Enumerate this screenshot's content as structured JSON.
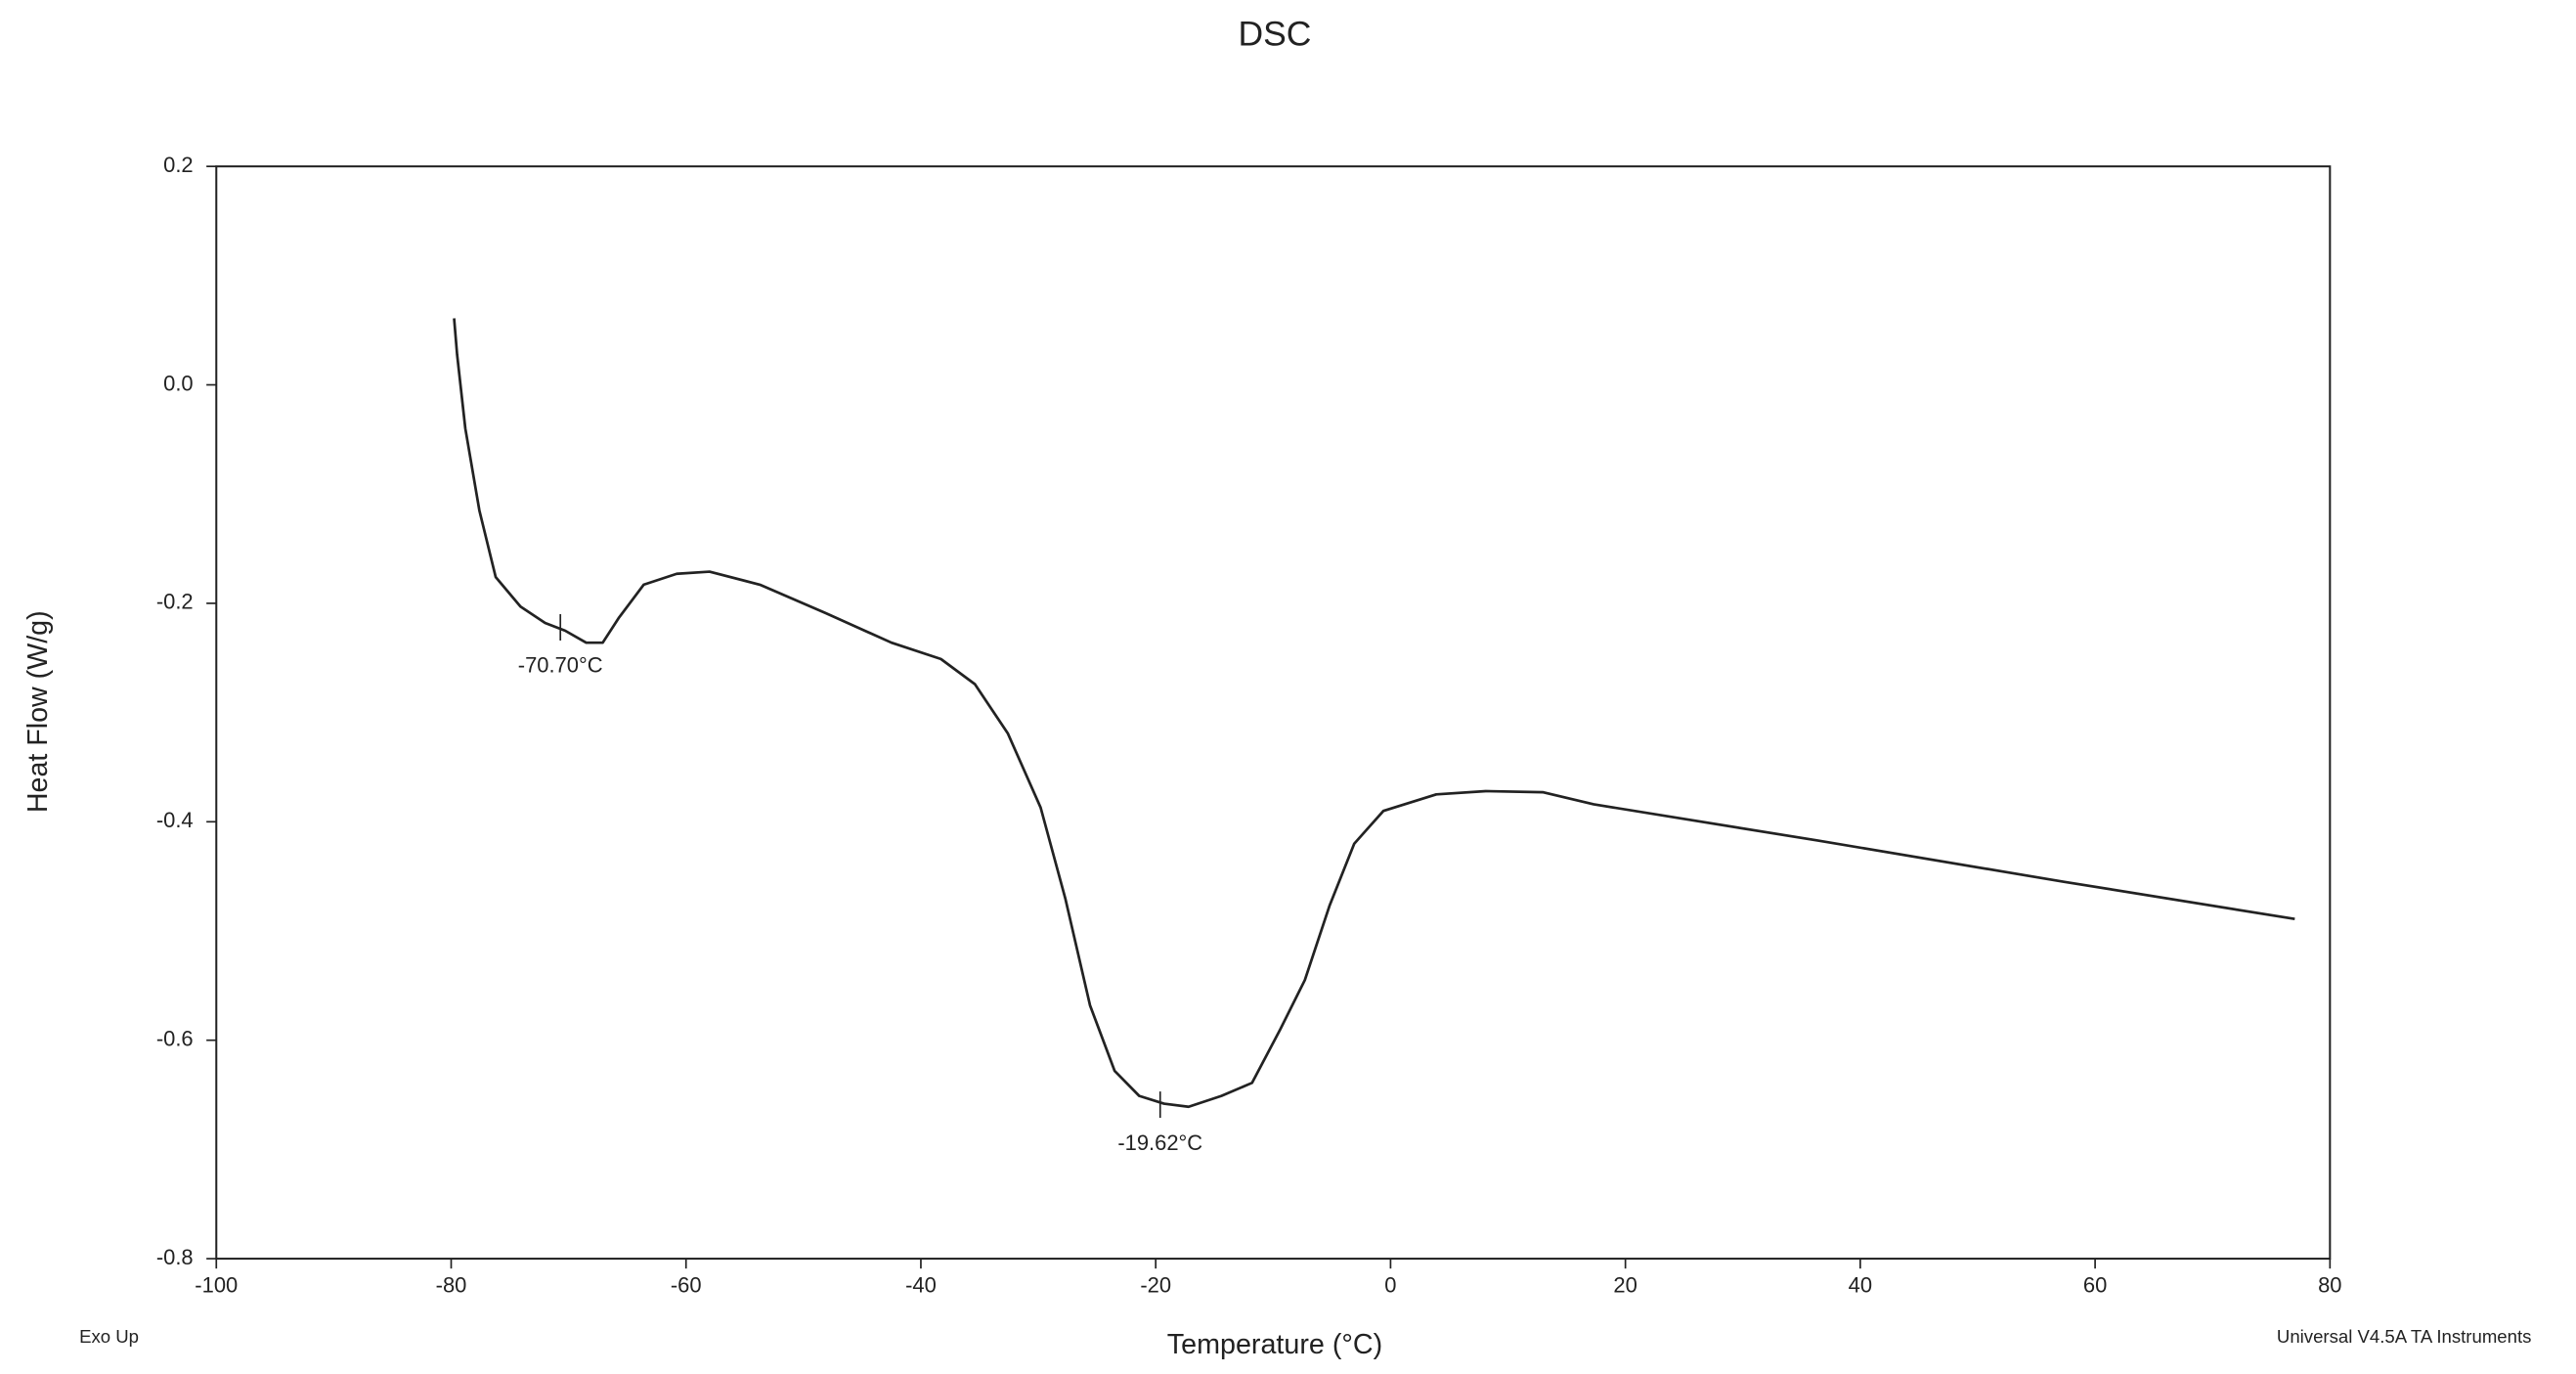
{
  "chart_data": {
    "type": "line",
    "title": "DSC",
    "x_label": "Temperature (°C)",
    "y_label": "Heat Flow (W/g)",
    "footer_left": "Exo Up",
    "footer_right": "Universal V4.5A TA Instruments",
    "xlim": [
      -100,
      80
    ],
    "xticks": [
      -100,
      -80,
      -60,
      -40,
      -20,
      0,
      20,
      40,
      60,
      80
    ],
    "ylim": [
      -0.8,
      0.2
    ],
    "yticks": [
      0.2,
      {
        "value": 0,
        "label": "0.0"
      },
      -0.2,
      -0.4,
      -0.6,
      -0.8
    ],
    "series": [
      {
        "color": "#222222",
        "x": [
          -79.75,
          -79.5,
          -78.8,
          -77.6,
          -76.2,
          -74.1,
          -72,
          -70.3,
          -68.5,
          -67.1,
          -65.7,
          -63.6,
          -60.8,
          -58,
          -53.7,
          -48.1,
          -42.5,
          -38.3,
          -35.4,
          -32.6,
          -29.8,
          -27.7,
          -25.6,
          -23.5,
          -21.4,
          -19.3,
          -17.2,
          -14.4,
          -11.8,
          -9.4,
          -7.3,
          -5.2,
          -3.1,
          -0.6,
          3.9,
          8.1,
          13,
          17.3,
          36.3,
          57.4,
          77
        ],
        "values": [
          0.061,
          0.028,
          -0.04,
          -0.115,
          -0.176,
          -0.203,
          -0.218,
          -0.225,
          -0.236,
          -0.236,
          -0.213,
          -0.183,
          -0.173,
          -0.171,
          -0.183,
          -0.209,
          -0.236,
          -0.251,
          -0.274,
          -0.319,
          -0.387,
          -0.47,
          -0.568,
          -0.628,
          -0.651,
          -0.658,
          -0.661,
          -0.651,
          -0.639,
          -0.59,
          -0.545,
          -0.477,
          -0.42,
          -0.39,
          -0.375,
          -0.372,
          -0.373,
          -0.384,
          -0.417,
          -0.455,
          -0.489
        ]
      }
    ],
    "annotations": [
      {
        "text": "-70.70°C",
        "x": -70.7,
        "y": -0.222
      },
      {
        "text": "-19.62°C",
        "x": -19.62,
        "y": -0.659
      }
    ]
  }
}
